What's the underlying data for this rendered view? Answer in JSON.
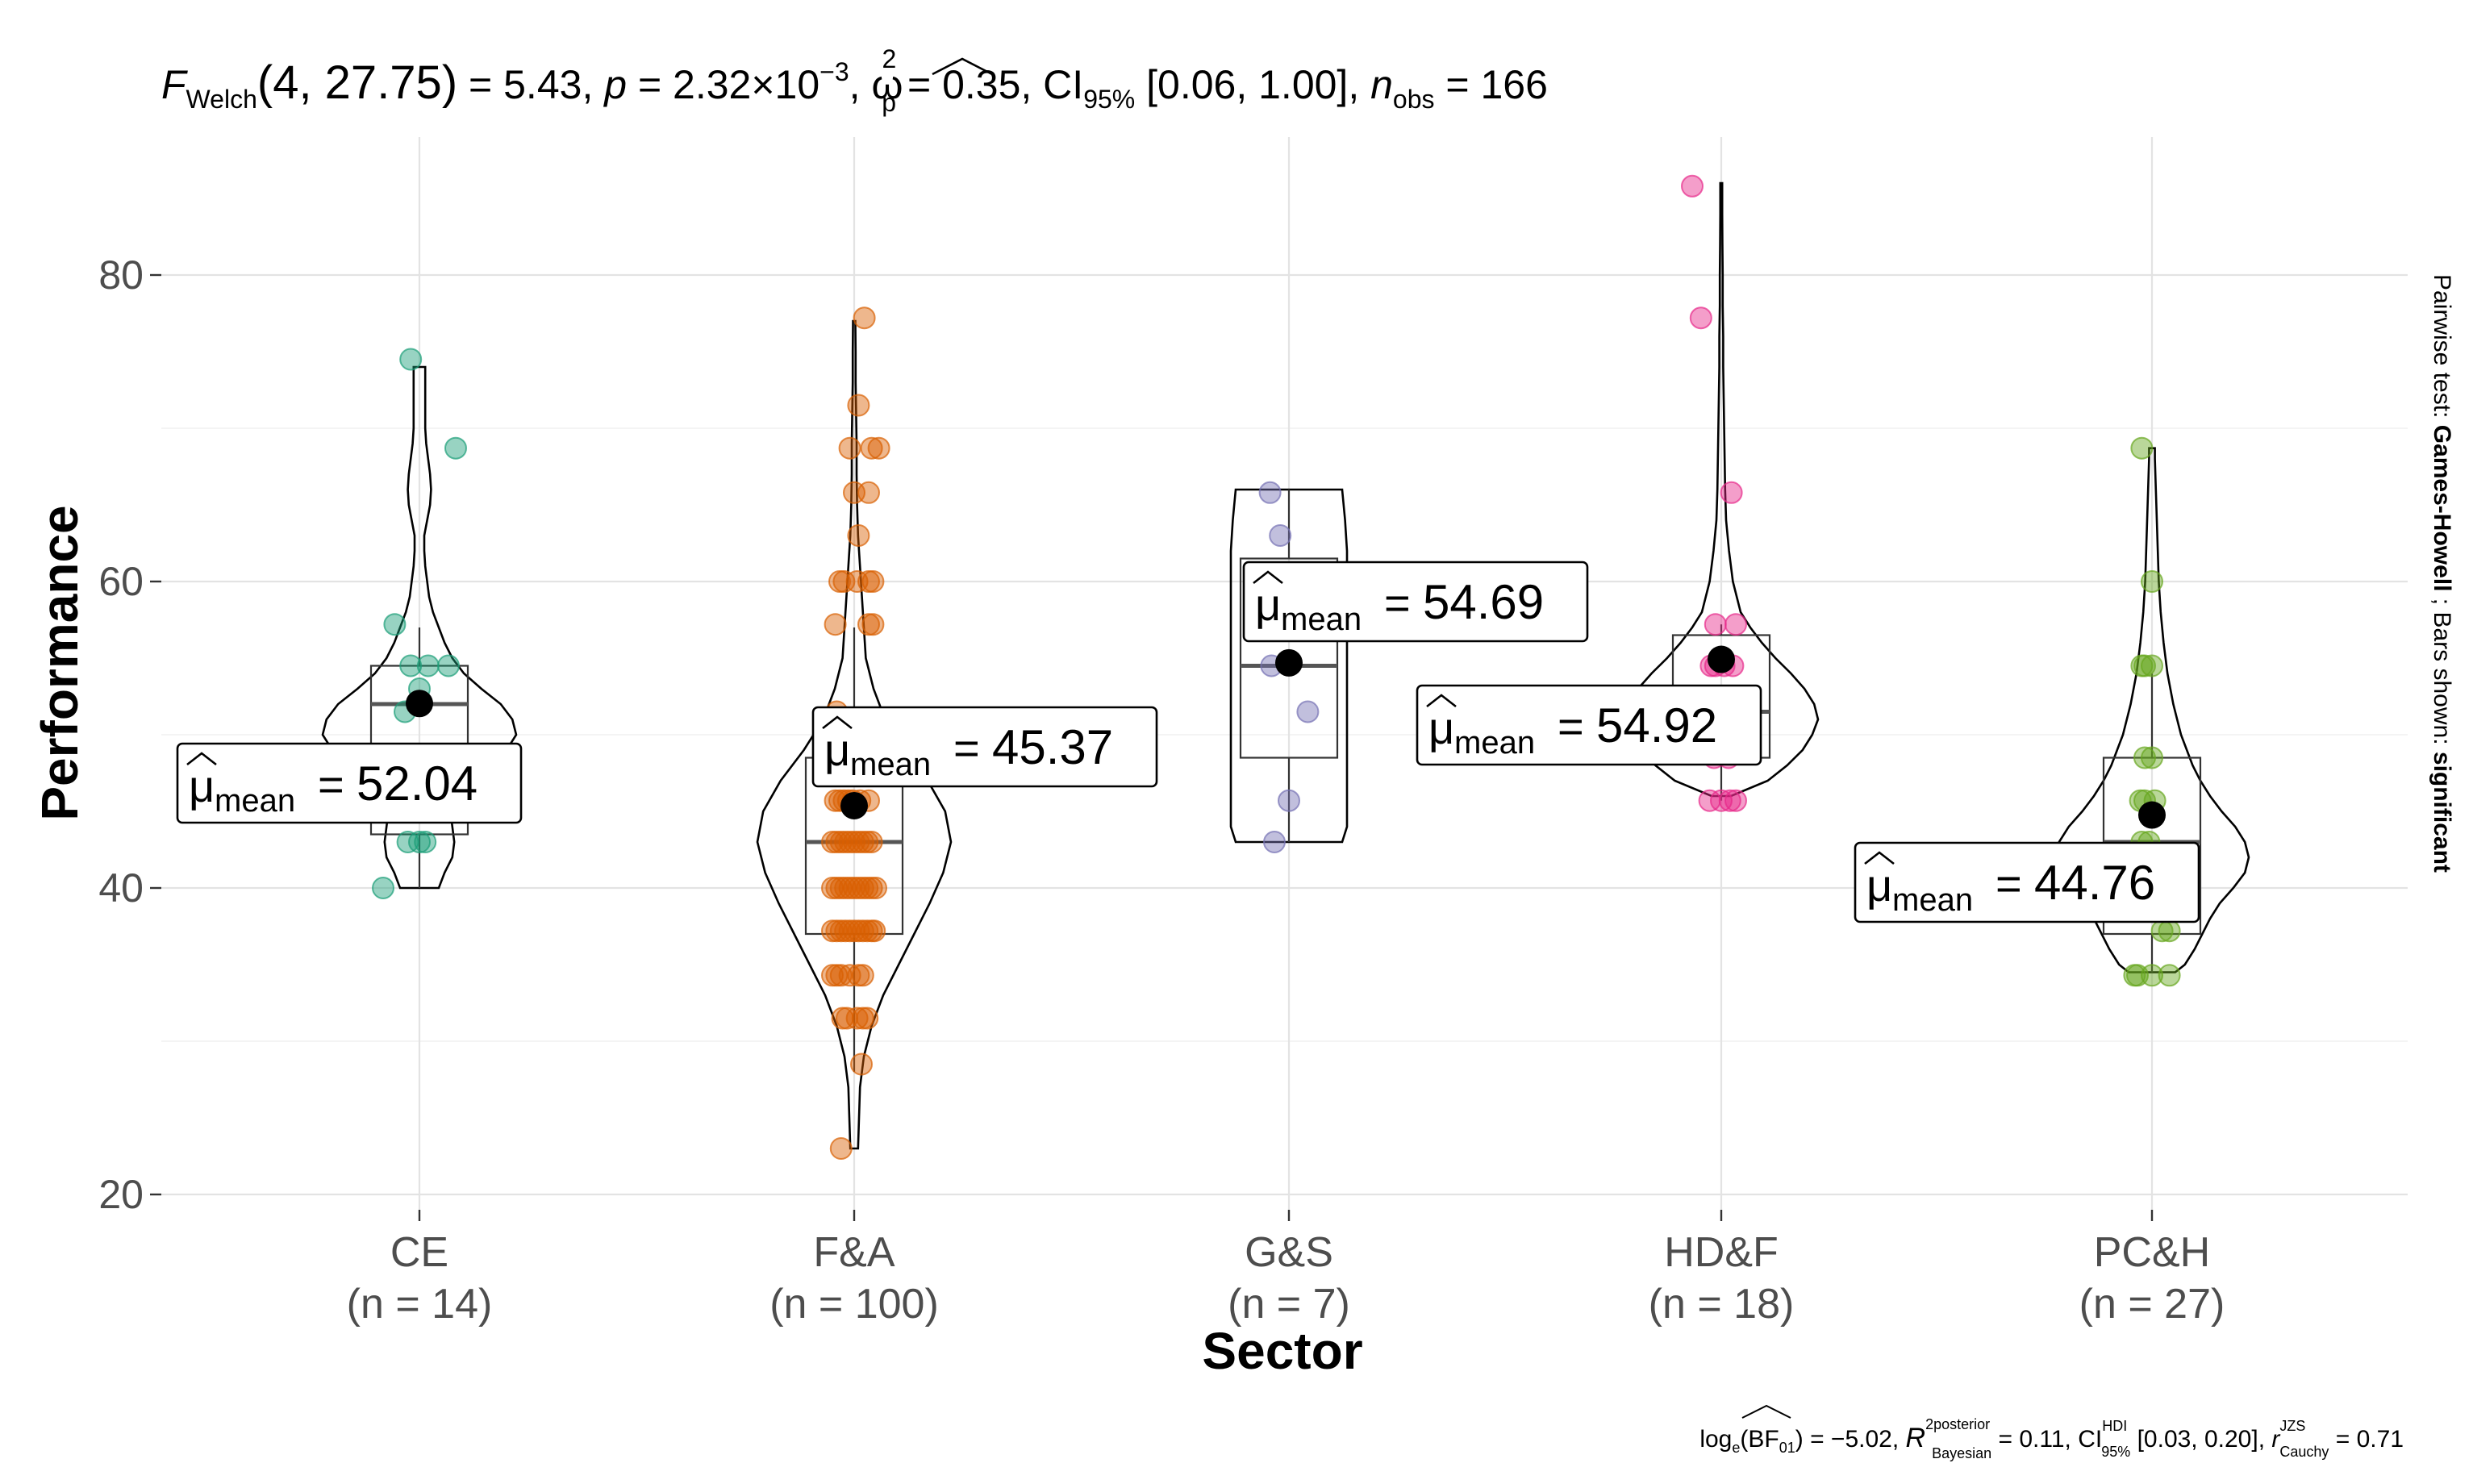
{
  "chart_data": {
    "type": "violin-box-scatter",
    "subtitle": {
      "F": "F",
      "F_sub": "Welch",
      "df": "(4, 27.75)",
      "eq_stat": " = 5.43, ",
      "p": "p",
      "p_eq": " = 2.32×10",
      "p_exp": "−3",
      "comma": ", ",
      "omega": "ω",
      "omega_sup": "2",
      "omega_sub": "p",
      "omega_val": " = 0.35, CI",
      "ci_sub": "95%",
      "ci_val": " [0.06, 1.00], ",
      "n": "n",
      "n_sub": "obs",
      "n_val": " = 166"
    },
    "caption": {
      "part1": "log",
      "part1_sub": "e",
      "part2": "(BF",
      "part2_sub": "01",
      "part3": ") = −5.02, ",
      "r2": "R",
      "r2_sup": "2posterior",
      "r2_sub": "Bayesian",
      "part4": " = 0.11, CI",
      "ci_sup": "HDI",
      "ci_sub": "95%",
      "part5": " [0.03, 0.20], ",
      "r": "r",
      "r_sup": "JZS",
      "r_sub": "Cauchy",
      "part6": " = 0.71"
    },
    "side_label": {
      "prefix": "Pairwise test: ",
      "test": "Games-Howell",
      "middle": " ; Bars shown: ",
      "shown": "significant"
    },
    "xlabel": "Sector",
    "ylabel": "Performance",
    "ylim": [
      19,
      89
    ],
    "yticks": [
      20,
      40,
      60,
      80
    ],
    "grid": true,
    "mean_symbol": "μ",
    "mean_sub": "mean",
    "groups": [
      {
        "name": "CE",
        "n_label": "(n = 14)",
        "color": "#1b9e77",
        "mean": 52.04,
        "mean_label": "52.04",
        "box": {
          "q1": 43.5,
          "median": 52.0,
          "q3": 54.5,
          "lo": 40.0,
          "hi": 57.0
        },
        "violin": [
          [
            40,
            0.2
          ],
          [
            41,
            0.26
          ],
          [
            42,
            0.34
          ],
          [
            43,
            0.36
          ],
          [
            44,
            0.34
          ],
          [
            45,
            0.32
          ],
          [
            46,
            0.34
          ],
          [
            47,
            0.46
          ],
          [
            48,
            0.66
          ],
          [
            49,
            0.9
          ],
          [
            50,
            1.0
          ],
          [
            51,
            0.96
          ],
          [
            52,
            0.84
          ],
          [
            53,
            0.64
          ],
          [
            54,
            0.46
          ],
          [
            55,
            0.34
          ],
          [
            56,
            0.26
          ],
          [
            57,
            0.2
          ],
          [
            58,
            0.14
          ],
          [
            59,
            0.1
          ],
          [
            60,
            0.08
          ],
          [
            61,
            0.06
          ],
          [
            62,
            0.05
          ],
          [
            63,
            0.05
          ],
          [
            64,
            0.08
          ],
          [
            65,
            0.11
          ],
          [
            66,
            0.12
          ],
          [
            67,
            0.11
          ],
          [
            68,
            0.09
          ],
          [
            69,
            0.07
          ],
          [
            70,
            0.06
          ],
          [
            72,
            0.06
          ],
          [
            74,
            0.06
          ]
        ],
        "points": [
          [
            74.5,
            -0.06
          ],
          [
            68.7,
            0.25
          ],
          [
            57.2,
            -0.17
          ],
          [
            54.5,
            -0.06
          ],
          [
            54.5,
            0.06
          ],
          [
            54.5,
            0.2
          ],
          [
            53,
            0.0
          ],
          [
            51.5,
            -0.1
          ],
          [
            47,
            0.12
          ],
          [
            46.5,
            -0.08
          ],
          [
            43,
            -0.08
          ],
          [
            43,
            0.0
          ],
          [
            43,
            0.04
          ],
          [
            40,
            -0.25
          ]
        ]
      },
      {
        "name": "F&A",
        "n_label": "(n = 100)",
        "color": "#d95f02",
        "mean": 45.37,
        "mean_label": "45.37",
        "box": {
          "q1": 37.0,
          "median": 43.0,
          "q3": 48.5,
          "lo": 28.0,
          "hi": 57.0
        },
        "violin": [
          [
            23,
            0.04
          ],
          [
            25,
            0.05
          ],
          [
            27,
            0.06
          ],
          [
            29,
            0.1
          ],
          [
            31,
            0.18
          ],
          [
            33,
            0.3
          ],
          [
            35,
            0.46
          ],
          [
            37,
            0.62
          ],
          [
            39,
            0.78
          ],
          [
            41,
            0.92
          ],
          [
            43,
            1.0
          ],
          [
            45,
            0.94
          ],
          [
            47,
            0.76
          ],
          [
            49,
            0.52
          ],
          [
            51,
            0.32
          ],
          [
            53,
            0.2
          ],
          [
            55,
            0.12
          ],
          [
            57,
            0.1
          ],
          [
            59,
            0.08
          ],
          [
            61,
            0.06
          ],
          [
            63,
            0.04
          ],
          [
            65,
            0.03
          ],
          [
            67,
            0.025
          ],
          [
            69,
            0.025
          ],
          [
            71,
            0.02
          ],
          [
            73,
            0.015
          ],
          [
            75,
            0.015
          ],
          [
            77,
            0.012
          ]
        ],
        "points": [
          [
            77.2,
            0.07
          ],
          [
            71.5,
            0.03
          ],
          [
            68.7,
            -0.03
          ],
          [
            68.7,
            0.12
          ],
          [
            68.7,
            0.17
          ],
          [
            65.8,
            0.0
          ],
          [
            65.8,
            0.1
          ],
          [
            63,
            0.03
          ],
          [
            60,
            -0.1
          ],
          [
            60,
            -0.07
          ],
          [
            60,
            0.02
          ],
          [
            60,
            0.1
          ],
          [
            60,
            0.13
          ],
          [
            57.2,
            -0.13
          ],
          [
            57.2,
            0.1
          ],
          [
            57.2,
            0.13
          ],
          [
            51.5,
            -0.12
          ],
          [
            48.5,
            -0.13
          ],
          [
            48.5,
            -0.03
          ],
          [
            48.5,
            0.04
          ],
          [
            45.7,
            -0.13
          ],
          [
            45.7,
            -0.1
          ],
          [
            45.7,
            -0.07
          ],
          [
            45.7,
            -0.04
          ],
          [
            45.7,
            -0.01
          ],
          [
            45.7,
            0.04
          ],
          [
            45.7,
            0.1
          ],
          [
            43,
            -0.15
          ],
          [
            43,
            -0.12
          ],
          [
            43,
            -0.09
          ],
          [
            43,
            -0.06
          ],
          [
            43,
            -0.03
          ],
          [
            43,
            0.0
          ],
          [
            43,
            0.03
          ],
          [
            43,
            0.06
          ],
          [
            43,
            0.09
          ],
          [
            43,
            0.12
          ],
          [
            40,
            -0.15
          ],
          [
            40,
            -0.12
          ],
          [
            40,
            -0.09
          ],
          [
            40,
            -0.06
          ],
          [
            40,
            -0.03
          ],
          [
            40,
            0.0
          ],
          [
            40,
            0.03
          ],
          [
            40,
            0.06
          ],
          [
            40,
            0.09
          ],
          [
            40,
            0.12
          ],
          [
            40,
            0.15
          ],
          [
            37.2,
            -0.15
          ],
          [
            37.2,
            -0.12
          ],
          [
            37.2,
            -0.09
          ],
          [
            37.2,
            -0.06
          ],
          [
            37.2,
            -0.03
          ],
          [
            37.2,
            0.0
          ],
          [
            37.2,
            0.03
          ],
          [
            37.2,
            0.06
          ],
          [
            37.2,
            0.09
          ],
          [
            37.2,
            0.12
          ],
          [
            37.2,
            0.14
          ],
          [
            34.3,
            -0.15
          ],
          [
            34.3,
            -0.12
          ],
          [
            34.3,
            -0.09
          ],
          [
            34.3,
            -0.03
          ],
          [
            34.3,
            0.03
          ],
          [
            34.3,
            0.06
          ],
          [
            31.5,
            -0.08
          ],
          [
            31.5,
            -0.05
          ],
          [
            31.5,
            0.02
          ],
          [
            31.5,
            0.06
          ],
          [
            31.5,
            0.09
          ],
          [
            28.5,
            0.05
          ],
          [
            23,
            -0.09
          ]
        ]
      },
      {
        "name": "G&S",
        "n_label": "(n = 7)",
        "color": "#7570b3",
        "mean": 54.69,
        "mean_label": "54.69",
        "box": {
          "q1": 48.5,
          "median": 54.5,
          "q3": 61.5,
          "lo": 43.0,
          "hi": 66.0
        },
        "violin": [
          [
            43,
            0.55
          ],
          [
            44,
            0.6
          ],
          [
            45,
            0.6
          ],
          [
            46,
            0.6
          ],
          [
            47,
            0.6
          ],
          [
            48,
            0.6
          ],
          [
            50,
            0.6
          ],
          [
            52,
            0.6
          ],
          [
            54,
            0.6
          ],
          [
            56,
            0.6
          ],
          [
            58,
            0.6
          ],
          [
            60,
            0.6
          ],
          [
            62,
            0.6
          ],
          [
            64,
            0.58
          ],
          [
            66,
            0.55
          ]
        ],
        "points": [
          [
            65.8,
            -0.13
          ],
          [
            63,
            -0.06
          ],
          [
            54.5,
            -0.12
          ],
          [
            51.5,
            0.13
          ],
          [
            45.7,
            0.0
          ],
          [
            43,
            -0.1
          ]
        ]
      },
      {
        "name": "HD&F",
        "n_label": "(n = 18)",
        "color": "#e7298a",
        "mean": 54.92,
        "mean_label": "54.92",
        "box": {
          "q1": 48.5,
          "median": 51.5,
          "q3": 56.5,
          "lo": 45.7,
          "hi": 57.2
        },
        "violin": [
          [
            46,
            0.1
          ],
          [
            47,
            0.48
          ],
          [
            48,
            0.68
          ],
          [
            49,
            0.84
          ],
          [
            50,
            0.94
          ],
          [
            51,
            1.0
          ],
          [
            52,
            0.96
          ],
          [
            53,
            0.86
          ],
          [
            54,
            0.72
          ],
          [
            55,
            0.56
          ],
          [
            56,
            0.42
          ],
          [
            57,
            0.3
          ],
          [
            58,
            0.2
          ],
          [
            60,
            0.12
          ],
          [
            62,
            0.08
          ],
          [
            64,
            0.05
          ],
          [
            66,
            0.04
          ],
          [
            68,
            0.035
          ],
          [
            70,
            0.03
          ],
          [
            72,
            0.025
          ],
          [
            74,
            0.02
          ],
          [
            76,
            0.02
          ],
          [
            78,
            0.015
          ],
          [
            80,
            0.015
          ],
          [
            82,
            0.012
          ],
          [
            84,
            0.01
          ],
          [
            86,
            0.01
          ]
        ],
        "points": [
          [
            85.8,
            -0.2
          ],
          [
            77.2,
            -0.14
          ],
          [
            65.8,
            0.07
          ],
          [
            57.2,
            -0.04
          ],
          [
            57.2,
            0.1
          ],
          [
            54.5,
            -0.07
          ],
          [
            54.5,
            -0.04
          ],
          [
            54.5,
            0.02
          ],
          [
            54.5,
            0.08
          ],
          [
            51.5,
            0.1
          ],
          [
            48.5,
            -0.05
          ],
          [
            48.5,
            0.05
          ],
          [
            45.7,
            -0.08
          ],
          [
            45.7,
            0.0
          ],
          [
            45.7,
            0.06
          ],
          [
            45.7,
            0.1
          ]
        ]
      },
      {
        "name": "PC&H",
        "n_label": "(n = 27)",
        "color": "#66a61e",
        "mean": 44.76,
        "mean_label": "44.76",
        "box": {
          "q1": 37.0,
          "median": 43.0,
          "q3": 48.5,
          "lo": 34.5,
          "hi": 54.0
        },
        "violin": [
          [
            34.5,
            0.24
          ],
          [
            35,
            0.34
          ],
          [
            36,
            0.44
          ],
          [
            37,
            0.52
          ],
          [
            38,
            0.6
          ],
          [
            39,
            0.7
          ],
          [
            40,
            0.84
          ],
          [
            41,
            0.96
          ],
          [
            42,
            1.0
          ],
          [
            43,
            0.96
          ],
          [
            44,
            0.86
          ],
          [
            45,
            0.72
          ],
          [
            46,
            0.6
          ],
          [
            47,
            0.5
          ],
          [
            48,
            0.42
          ],
          [
            50,
            0.3
          ],
          [
            52,
            0.22
          ],
          [
            54,
            0.16
          ],
          [
            56,
            0.12
          ],
          [
            58,
            0.09
          ],
          [
            60,
            0.07
          ],
          [
            62,
            0.06
          ],
          [
            64,
            0.05
          ],
          [
            66,
            0.04
          ],
          [
            68,
            0.03
          ],
          [
            68.7,
            0.03
          ]
        ],
        "points": [
          [
            68.7,
            -0.07
          ],
          [
            60,
            0.0
          ],
          [
            54.5,
            -0.07
          ],
          [
            54.5,
            -0.05
          ],
          [
            54.5,
            0.0
          ],
          [
            48.5,
            -0.05
          ],
          [
            48.5,
            0.0
          ],
          [
            45.7,
            -0.08
          ],
          [
            45.7,
            -0.05
          ],
          [
            45.7,
            0.02
          ],
          [
            43,
            -0.07
          ],
          [
            43,
            -0.02
          ],
          [
            40,
            -0.03
          ],
          [
            37.2,
            0.07
          ],
          [
            37.2,
            0.12
          ],
          [
            34.3,
            -0.12
          ],
          [
            34.3,
            -0.1
          ],
          [
            34.3,
            0.0
          ],
          [
            34.3,
            0.12
          ]
        ]
      }
    ]
  }
}
